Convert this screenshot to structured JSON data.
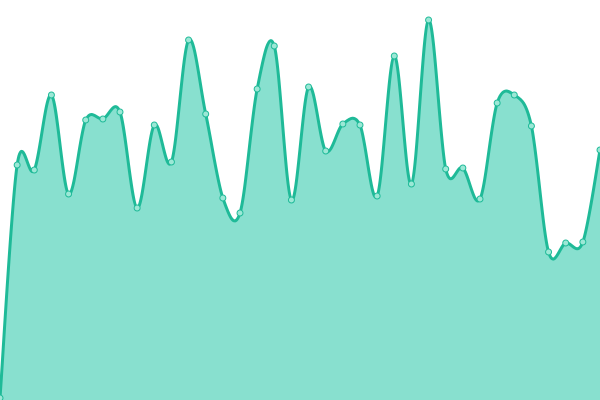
{
  "chart_data": {
    "type": "area",
    "title": "",
    "xlabel": "",
    "ylabel": "",
    "x": [
      0,
      1,
      2,
      3,
      4,
      5,
      6,
      7,
      8,
      9,
      10,
      11,
      12,
      13,
      14,
      15,
      16,
      17,
      18,
      19,
      20,
      21,
      22,
      23,
      24,
      25,
      26,
      27,
      28,
      29,
      30,
      31,
      32,
      33,
      34,
      35
    ],
    "values": [
      2,
      235,
      230,
      305,
      206,
      280,
      281,
      288,
      192,
      275,
      238,
      360,
      286,
      202,
      187,
      311,
      354,
      200,
      313,
      249,
      276,
      275,
      204,
      344,
      216,
      380,
      231,
      232,
      201,
      297,
      305,
      274,
      148,
      157,
      158,
      250
    ],
    "ylim": [
      0,
      400
    ],
    "xlim": [
      0,
      35
    ],
    "grid": false,
    "axes_visible": false,
    "smooth": true,
    "markers": true,
    "colors": {
      "line": "#1fba98",
      "fill": "#88e0cf",
      "marker_fill": "#9ce8d6"
    }
  }
}
